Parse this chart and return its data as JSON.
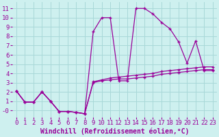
{
  "background_color": "#cef0ef",
  "grid_color": "#a8d8d8",
  "line_color": "#990099",
  "marker": "+",
  "xlabel": "Windchill (Refroidissement éolien,°C)",
  "xlim": [
    -0.5,
    23.5
  ],
  "ylim": [
    -0.7,
    11.7
  ],
  "xticks": [
    0,
    1,
    2,
    3,
    4,
    5,
    6,
    7,
    8,
    9,
    10,
    11,
    12,
    13,
    14,
    15,
    16,
    17,
    18,
    19,
    20,
    21,
    22,
    23
  ],
  "yticks": [
    0,
    1,
    2,
    3,
    4,
    5,
    6,
    7,
    8,
    9,
    10,
    11
  ],
  "ytick_labels": [
    "-0",
    "1",
    "2",
    "3",
    "4",
    "5",
    "6",
    "7",
    "8",
    "9",
    "10",
    "11"
  ],
  "line1_x": [
    0,
    1,
    2,
    3,
    4,
    5,
    6,
    7,
    8,
    9,
    10,
    11,
    12,
    13,
    14,
    15,
    16,
    17,
    18,
    19,
    20,
    21,
    22,
    23
  ],
  "line1_y": [
    2.1,
    0.9,
    0.9,
    2.0,
    1.0,
    -0.1,
    -0.1,
    -0.2,
    -0.35,
    8.5,
    10.0,
    10.0,
    3.2,
    3.2,
    11.0,
    11.0,
    10.4,
    9.5,
    8.8,
    7.4,
    5.1,
    7.5,
    4.3,
    4.3
  ],
  "line2_x": [
    0,
    1,
    2,
    3,
    4,
    5,
    6,
    7,
    8,
    9,
    10,
    11,
    12,
    13,
    14,
    15,
    16,
    17,
    18,
    19,
    20,
    21,
    22,
    23
  ],
  "line2_y": [
    2.1,
    0.9,
    0.9,
    2.0,
    1.0,
    -0.1,
    -0.1,
    -0.2,
    -0.35,
    3.0,
    3.2,
    3.3,
    3.4,
    3.4,
    3.5,
    3.6,
    3.7,
    3.9,
    4.0,
    4.1,
    4.2,
    4.3,
    4.4,
    4.4
  ],
  "line3_x": [
    0,
    1,
    2,
    3,
    4,
    5,
    6,
    7,
    8,
    9,
    10,
    11,
    12,
    13,
    14,
    15,
    16,
    17,
    18,
    19,
    20,
    21,
    22,
    23
  ],
  "line3_y": [
    2.1,
    0.9,
    0.9,
    2.0,
    1.0,
    -0.1,
    -0.1,
    -0.2,
    -0.35,
    3.1,
    3.3,
    3.5,
    3.6,
    3.7,
    3.8,
    3.9,
    4.0,
    4.2,
    4.3,
    4.4,
    4.5,
    4.6,
    4.7,
    4.7
  ],
  "font_family": "monospace",
  "xlabel_fontsize": 7,
  "tick_fontsize": 6.5,
  "lw": 0.9,
  "ms": 3
}
